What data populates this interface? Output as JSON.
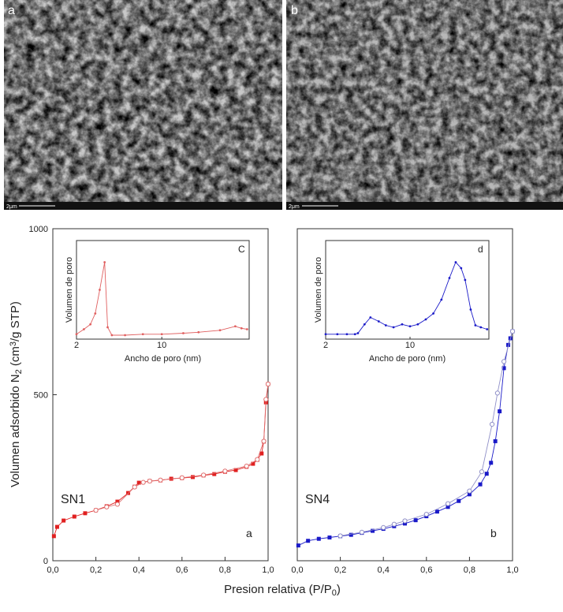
{
  "images": [
    {
      "label": "a",
      "scale": "2μm"
    },
    {
      "label": "b",
      "scale": "2μm"
    }
  ],
  "figure": {
    "ylabel": [
      {
        "text": "Volumen adsorbido N"
      },
      {
        "sub": "2"
      },
      {
        "text": " (cm"
      },
      {
        "sup": "3"
      },
      {
        "text": "/g STP)"
      }
    ],
    "xlabel": [
      {
        "text": "Presion relativa (P/P"
      },
      {
        "sub": "0"
      },
      {
        "text": ")"
      }
    ]
  },
  "chart_data": [
    {
      "type": "line",
      "xscale": "linear",
      "label": "SN1",
      "panel": "a",
      "xlim": [
        0,
        1
      ],
      "ylim": [
        0,
        1000
      ],
      "xticks": [
        {
          "value": 0,
          "label": "0,0"
        },
        {
          "value": 0.2,
          "label": "0,2"
        },
        {
          "value": 0.4,
          "label": "0,4"
        },
        {
          "value": 0.6,
          "label": "0,6"
        },
        {
          "value": 0.8,
          "label": "0,8"
        },
        {
          "value": 1,
          "label": "1,0"
        }
      ],
      "yticks": [
        0,
        500,
        1000
      ],
      "series": [
        {
          "color": "#e02020",
          "marker": "square",
          "x": [
            0.005,
            0.02,
            0.05,
            0.1,
            0.15,
            0.2,
            0.25,
            0.3,
            0.35,
            0.38,
            0.4,
            0.45,
            0.5,
            0.55,
            0.6,
            0.65,
            0.7,
            0.75,
            0.8,
            0.85,
            0.9,
            0.93,
            0.95,
            0.97,
            0.98,
            0.99,
            1.0
          ],
          "values": [
            74,
            102,
            121,
            133,
            143,
            152,
            164,
            178,
            204,
            223,
            235,
            240,
            242,
            247,
            249,
            252,
            257,
            261,
            268,
            273,
            283,
            292,
            304,
            323,
            359,
            477,
            532
          ]
        },
        {
          "color": "#e07070",
          "marker": "open",
          "x": [
            1.0,
            0.99,
            0.98,
            0.95,
            0.9,
            0.8,
            0.7,
            0.6,
            0.5,
            0.45,
            0.42,
            0.38,
            0.3,
            0.25,
            0.2
          ],
          "values": [
            532,
            486,
            360,
            305,
            285,
            270,
            258,
            250,
            243,
            240,
            236,
            222,
            170,
            162,
            152
          ]
        }
      ]
    },
    {
      "type": "line",
      "xscale": "linear",
      "label": "SN4",
      "panel": "b",
      "xlim": [
        0,
        1
      ],
      "ylim": [
        0,
        1000
      ],
      "xticks": [
        {
          "value": 0,
          "label": "0,0"
        },
        {
          "value": 0.2,
          "label": "0,2"
        },
        {
          "value": 0.4,
          "label": "0,4"
        },
        {
          "value": 0.6,
          "label": "0,6"
        },
        {
          "value": 0.8,
          "label": "0,8"
        },
        {
          "value": 1,
          "label": "1,0"
        }
      ],
      "series": [
        {
          "color": "#1a1ac8",
          "marker": "square",
          "x": [
            0.005,
            0.05,
            0.1,
            0.15,
            0.2,
            0.25,
            0.3,
            0.35,
            0.4,
            0.45,
            0.5,
            0.55,
            0.6,
            0.65,
            0.7,
            0.75,
            0.8,
            0.85,
            0.88,
            0.9,
            0.92,
            0.94,
            0.96,
            0.98,
            0.99,
            1.0
          ],
          "values": [
            46,
            60,
            66,
            70,
            74,
            78,
            84,
            90,
            96,
            104,
            112,
            122,
            134,
            148,
            162,
            180,
            200,
            230,
            262,
            295,
            360,
            450,
            580,
            650,
            670,
            691
          ]
        },
        {
          "color": "#9090c8",
          "marker": "open",
          "x": [
            1.0,
            0.96,
            0.93,
            0.905,
            0.857,
            0.8,
            0.7,
            0.6,
            0.5,
            0.45,
            0.4,
            0.3,
            0.2
          ],
          "values": [
            691,
            600,
            505,
            411,
            268,
            210,
            172,
            140,
            120,
            110,
            100,
            86,
            75
          ]
        }
      ]
    },
    {
      "type": "line",
      "xscale": "log",
      "panel": "C",
      "xlabel": "Ancho de poro (nm)",
      "ylabel": "Volumen de poro",
      "xlim": [
        2,
        52
      ],
      "ylim": [
        0,
        1
      ],
      "xticks": [
        2,
        10
      ],
      "series": [
        {
          "color": "#e06060",
          "marker": "dot",
          "x": [
            2.0,
            2.3,
            2.6,
            2.85,
            3.1,
            3.4,
            3.6,
            3.9,
            5,
            7,
            10,
            15,
            20,
            30,
            40,
            45,
            50
          ],
          "values": [
            0.05,
            0.1,
            0.15,
            0.26,
            0.5,
            0.78,
            0.12,
            0.04,
            0.04,
            0.05,
            0.05,
            0.06,
            0.07,
            0.09,
            0.13,
            0.11,
            0.1
          ]
        }
      ]
    },
    {
      "type": "line",
      "xscale": "log",
      "panel": "d",
      "xlabel": "Ancho de poro (nm)",
      "ylabel": "Volumen de poro",
      "xlim": [
        2,
        45
      ],
      "ylim": [
        0,
        1
      ],
      "xticks": [
        2,
        10
      ],
      "series": [
        {
          "color": "#1a1ac8",
          "marker": "dot",
          "x": [
            2,
            2.5,
            3,
            3.5,
            3.7,
            4.2,
            4.7,
            5.5,
            6.3,
            7.3,
            8.6,
            10,
            11.6,
            13.5,
            15.6,
            18.2,
            21.2,
            23.9,
            26.5,
            28.6,
            31.8,
            34.8,
            38.6,
            43.5
          ],
          "values": [
            0.05,
            0.05,
            0.05,
            0.05,
            0.06,
            0.15,
            0.22,
            0.18,
            0.14,
            0.12,
            0.15,
            0.13,
            0.15,
            0.2,
            0.26,
            0.4,
            0.62,
            0.78,
            0.72,
            0.6,
            0.3,
            0.14,
            0.12,
            0.1
          ]
        }
      ]
    }
  ]
}
